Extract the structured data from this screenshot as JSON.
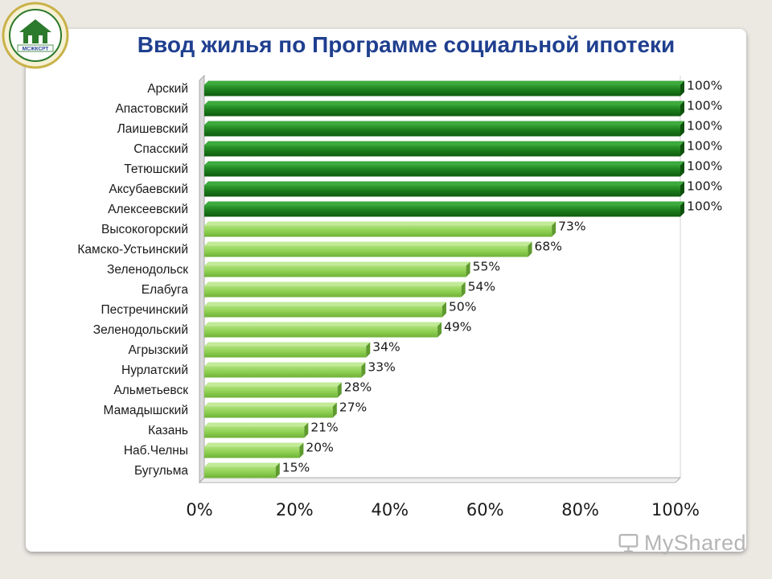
{
  "slide": {
    "title": "Ввод жилья по Программе социальной ипотеки",
    "logo_text": "МСЖКСРТ",
    "watermark": "MyShared"
  },
  "colors": {
    "dark_green": "#1a7a1a",
    "light_green": "#8dcf50",
    "title_blue": "#1f3f8f"
  },
  "chart_data": {
    "type": "bar",
    "orientation": "horizontal",
    "title": "Ввод жилья по Программе социальной ипотеки",
    "categories": [
      "Арский",
      "Апастовский",
      "Лаишевский",
      "Спасский",
      "Тетюшский",
      "Аксубаевский",
      "Алексеевский",
      "Высокогорский",
      "Камско-Устьинский",
      "Зеленодольск",
      "Елабуга",
      "Пестречинский",
      "Зеленодольский",
      "Агрызский",
      "Нурлатский",
      "Альметьевск",
      "Мамадышский",
      "Казань",
      "Наб.Челны",
      "Бугульма"
    ],
    "values": [
      100,
      100,
      100,
      100,
      100,
      100,
      100,
      73,
      68,
      55,
      54,
      50,
      49,
      34,
      33,
      28,
      27,
      21,
      20,
      15
    ],
    "data_labels": [
      "100%",
      "100%",
      "100%",
      "100%",
      "100%",
      "100%",
      "100%",
      "73%",
      "68%",
      "55%",
      "54%",
      "50%",
      "49%",
      "34%",
      "33%",
      "28%",
      "27%",
      "21%",
      "20%",
      "15%"
    ],
    "xlim": [
      0,
      100
    ],
    "xticks": [
      "0%",
      "20%",
      "40%",
      "60%",
      "80%",
      "100%"
    ],
    "xtick_values": [
      0,
      20,
      40,
      60,
      80,
      100
    ],
    "grid": false,
    "legend": "none"
  }
}
